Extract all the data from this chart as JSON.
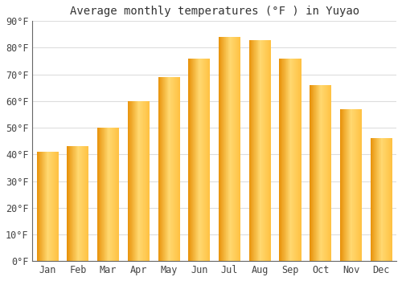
{
  "title": "Average monthly temperatures (°F ) in Yuyao",
  "months": [
    "Jan",
    "Feb",
    "Mar",
    "Apr",
    "May",
    "Jun",
    "Jul",
    "Aug",
    "Sep",
    "Oct",
    "Nov",
    "Dec"
  ],
  "values": [
    41,
    43,
    50,
    60,
    69,
    76,
    84,
    83,
    76,
    66,
    57,
    46
  ],
  "bar_color_left": "#F5A020",
  "bar_color_mid": "#FFD060",
  "bar_color_right": "#FFC030",
  "ylim": [
    0,
    90
  ],
  "yticks": [
    0,
    10,
    20,
    30,
    40,
    50,
    60,
    70,
    80,
    90
  ],
  "ytick_labels": [
    "0°F",
    "10°F",
    "20°F",
    "30°F",
    "40°F",
    "50°F",
    "60°F",
    "70°F",
    "80°F",
    "90°F"
  ],
  "background_color": "#ffffff",
  "grid_color": "#dddddd",
  "title_fontsize": 10,
  "tick_fontsize": 8.5
}
